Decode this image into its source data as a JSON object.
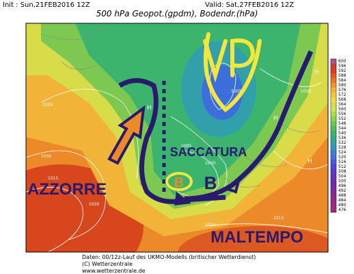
{
  "header": {
    "init": "Init : Sun,21FEB2016 12Z",
    "valid": "Valid: Sat,27FEB2016 12Z",
    "title": "500 hPa Geopot.(gpdm), Bodendr.(hPa)"
  },
  "annotations": {
    "vp": "VP",
    "saccatura": "SACCATURA",
    "azzorre": "AZZORRE",
    "b_small": "B",
    "b_large": "B",
    "maltempo": "MALTEMPO"
  },
  "highs": [
    "H",
    "H",
    "H",
    "H"
  ],
  "isobar_labels": [
    "1030",
    "1015",
    "1020",
    "1005",
    "1000",
    "1010",
    "1030",
    "1015",
    "1005",
    "1020"
  ],
  "colorbar": {
    "labels": [
      "600",
      "596",
      "592",
      "588",
      "584",
      "580",
      "576",
      "572",
      "568",
      "564",
      "560",
      "556",
      "552",
      "548",
      "544",
      "540",
      "536",
      "532",
      "528",
      "524",
      "520",
      "516",
      "512",
      "508",
      "504",
      "500",
      "496",
      "492",
      "488",
      "484",
      "480",
      "476"
    ],
    "colors": [
      "#b4508c",
      "#c83c3c",
      "#dc3c28",
      "#e65a1e",
      "#eb7823",
      "#f0962d",
      "#f5b432",
      "#f5c83c",
      "#f0dc46",
      "#dcdc50",
      "#c8e650",
      "#aadc50",
      "#8cd250",
      "#6ec850",
      "#50be5a",
      "#3cb46e",
      "#32aa8c",
      "#32a0aa",
      "#3296c8",
      "#3c82d2",
      "#466edc",
      "#4b5adc",
      "#5046d2",
      "#5a3cc8",
      "#6432be",
      "#6e28b4",
      "#7828aa",
      "#8228a0",
      "#8c2896",
      "#96288c",
      "#a02882",
      "#aa2878"
    ]
  },
  "footer": {
    "line1": "Daten: 00/12z-Lauf des UKMO-Modells (britischer Wetterdienst)",
    "line2": "(C) Wetterzentrale",
    "line3": "www.wetterzentrale.de"
  }
}
